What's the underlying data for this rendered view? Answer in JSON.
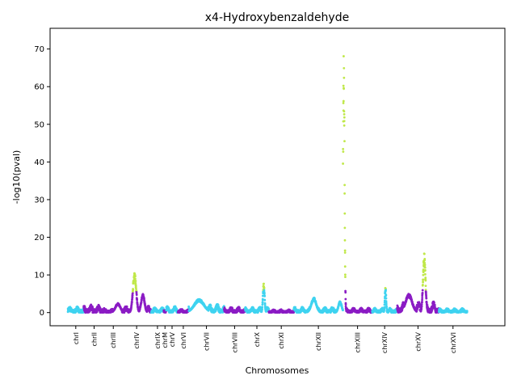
{
  "chart_data": {
    "type": "scatter",
    "title": "x4-Hydroxybenzaldehyde",
    "xlabel": "Chromosomes",
    "ylabel": "-log10(pval)",
    "ylim": [
      -3.5,
      75.5
    ],
    "yticks": [
      0,
      10,
      20,
      30,
      40,
      50,
      60,
      70
    ],
    "xlim": [
      0,
      1000
    ],
    "grid": false,
    "significant_color": "#c0e84a",
    "colors": [
      "#8b1cc4",
      "#3fd3f0"
    ],
    "chromosomes": [
      {
        "label": "chrI",
        "start": 0,
        "end": 38,
        "color": "#3fd3f0",
        "base": 1.0,
        "spread": 1.2,
        "features": []
      },
      {
        "label": "chrII",
        "start": 38,
        "end": 88,
        "color": "#8b1cc4",
        "base": 1.4,
        "spread": 1.4,
        "features": []
      },
      {
        "label": "chrIII",
        "start": 88,
        "end": 130,
        "color": "#8b1cc4",
        "base": 0.6,
        "spread": 0.8,
        "features": [
          {
            "pos": 120,
            "height": 2.5,
            "width": 6
          }
        ]
      },
      {
        "label": "chrIV",
        "start": 130,
        "end": 200,
        "color": "#8b1cc4",
        "base": 1.2,
        "spread": 1.2,
        "features": [
          {
            "pos": 160,
            "height": 11.0,
            "width": 4,
            "sig": 5.5
          },
          {
            "pos": 180,
            "height": 5.0,
            "width": 4
          }
        ]
      },
      {
        "label": "chrIX",
        "start": 200,
        "end": 230,
        "color": "#3fd3f0",
        "base": 0.9,
        "spread": 1.0,
        "features": []
      },
      {
        "label": "chrM",
        "start": 230,
        "end": 236,
        "color": "#8b1cc4",
        "base": 1.0,
        "spread": 1.2,
        "features": []
      },
      {
        "label": "chrV",
        "start": 236,
        "end": 264,
        "color": "#3fd3f0",
        "base": 1.2,
        "spread": 1.0,
        "features": []
      },
      {
        "label": "chrVI",
        "start": 264,
        "end": 290,
        "color": "#8b1cc4",
        "base": 0.6,
        "spread": 0.8,
        "features": []
      },
      {
        "label": "chrVII",
        "start": 290,
        "end": 375,
        "color": "#3fd3f0",
        "base": 1.6,
        "spread": 1.4,
        "features": [
          {
            "pos": 315,
            "height": 3.6,
            "width": 12
          }
        ]
      },
      {
        "label": "chrVIII",
        "start": 375,
        "end": 425,
        "color": "#8b1cc4",
        "base": 1.0,
        "spread": 1.0,
        "features": []
      },
      {
        "label": "chrX",
        "start": 425,
        "end": 482,
        "color": "#3fd3f0",
        "base": 1.0,
        "spread": 1.0,
        "features": [
          {
            "pos": 470,
            "height": 8.0,
            "width": 2,
            "sig": 6.0
          }
        ]
      },
      {
        "label": "chrXI",
        "start": 482,
        "end": 542,
        "color": "#8b1cc4",
        "base": 0.5,
        "spread": 0.7,
        "features": []
      },
      {
        "label": "chrXII",
        "start": 542,
        "end": 660,
        "color": "#3fd3f0",
        "base": 1.0,
        "spread": 1.0,
        "features": [
          {
            "pos": 590,
            "height": 4.0,
            "width": 6
          },
          {
            "pos": 653,
            "height": 3.0,
            "width": 4
          }
        ]
      },
      {
        "label": "chrXIII",
        "start": 660,
        "end": 730,
        "color": "#8b1cc4",
        "base": 0.8,
        "spread": 0.9,
        "features": [
          {
            "pos": 662,
            "height": 72.0,
            "width": 1.8,
            "sig": 6.0
          }
        ]
      },
      {
        "label": "chrXIV",
        "start": 730,
        "end": 790,
        "color": "#3fd3f0",
        "base": 0.8,
        "spread": 0.9,
        "features": [
          {
            "pos": 762,
            "height": 7.0,
            "width": 1.5,
            "sig": 6.0
          }
        ]
      },
      {
        "label": "chrXV",
        "start": 790,
        "end": 890,
        "color": "#8b1cc4",
        "base": 2.2,
        "spread": 1.5,
        "features": [
          {
            "pos": 818,
            "height": 5.0,
            "width": 8
          },
          {
            "pos": 855,
            "height": 16.0,
            "width": 3,
            "sig": 6.0
          }
        ]
      },
      {
        "label": "chrXVI",
        "start": 890,
        "end": 958,
        "color": "#3fd3f0",
        "base": 0.7,
        "spread": 0.9,
        "features": []
      }
    ]
  }
}
